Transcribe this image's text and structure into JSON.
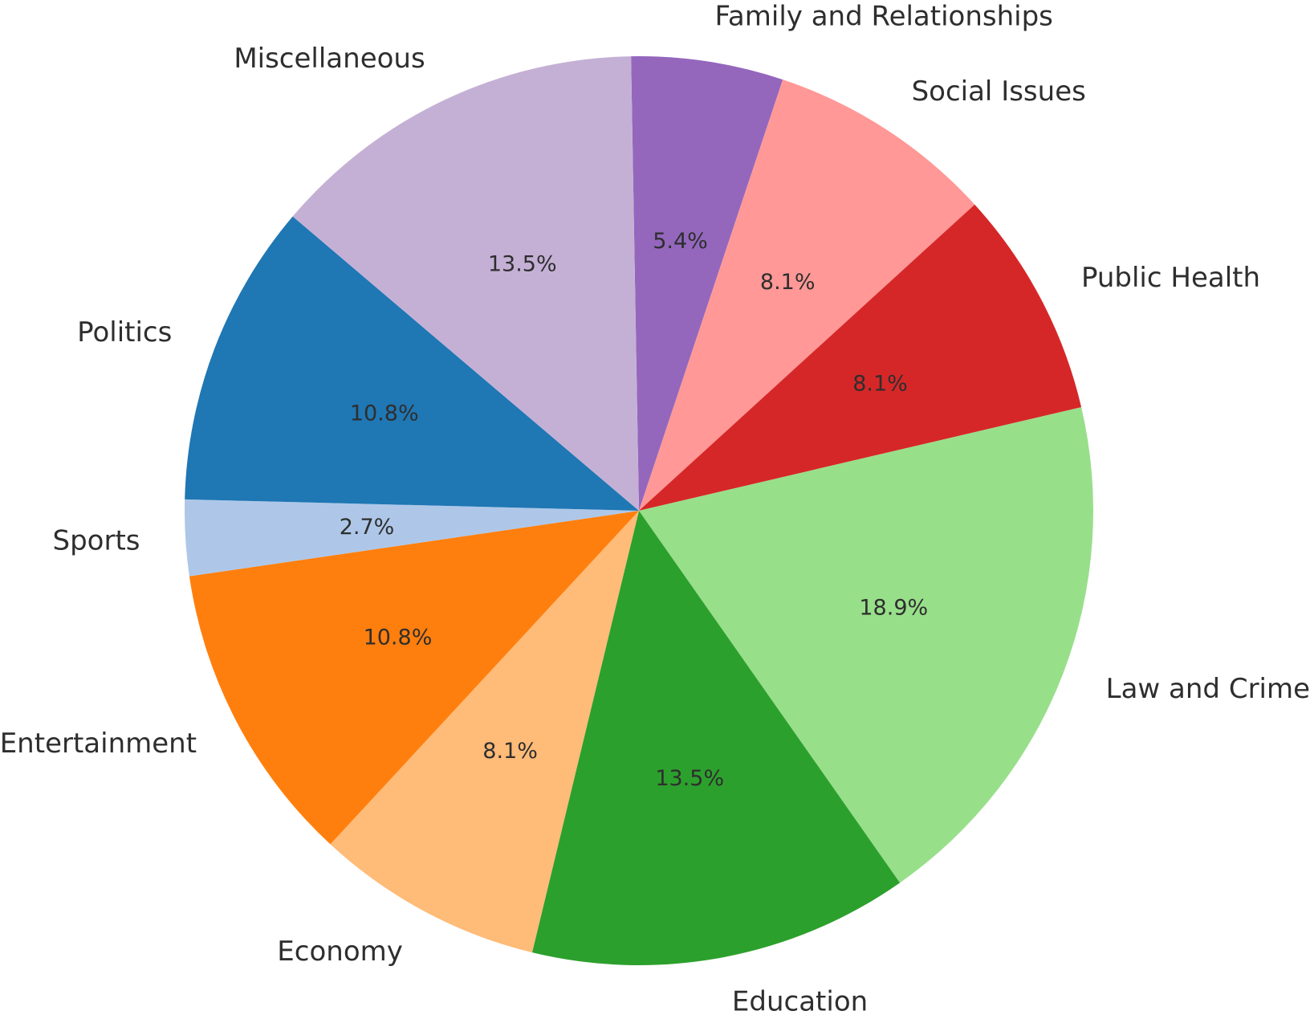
{
  "chart_data": {
    "type": "pie",
    "start_angle_deg": 91,
    "direction": "clockwise",
    "title": "",
    "slices": [
      {
        "label": "Family and Relationships",
        "value": 5.4,
        "pct_label": "5.4%",
        "color": "#9467bd"
      },
      {
        "label": "Social Issues",
        "value": 8.1,
        "pct_label": "8.1%",
        "color": "#ff9896"
      },
      {
        "label": "Public Health",
        "value": 8.1,
        "pct_label": "8.1%",
        "color": "#d62728"
      },
      {
        "label": "Law and Crime",
        "value": 18.9,
        "pct_label": "18.9%",
        "color": "#98df8a"
      },
      {
        "label": "Education",
        "value": 13.5,
        "pct_label": "13.5%",
        "color": "#2ca02c"
      },
      {
        "label": "Economy",
        "value": 8.1,
        "pct_label": "8.1%",
        "color": "#ffbb78"
      },
      {
        "label": "Entertainment",
        "value": 10.8,
        "pct_label": "10.8%",
        "color": "#ff7f0e"
      },
      {
        "label": "Sports",
        "value": 2.7,
        "pct_label": "2.7%",
        "color": "#aec7e8"
      },
      {
        "label": "Politics",
        "value": 10.8,
        "pct_label": "10.8%",
        "color": "#1f77b4"
      },
      {
        "label": "Miscellaneous",
        "value": 13.5,
        "pct_label": "13.5%",
        "color": "#c5b0d5"
      }
    ]
  }
}
